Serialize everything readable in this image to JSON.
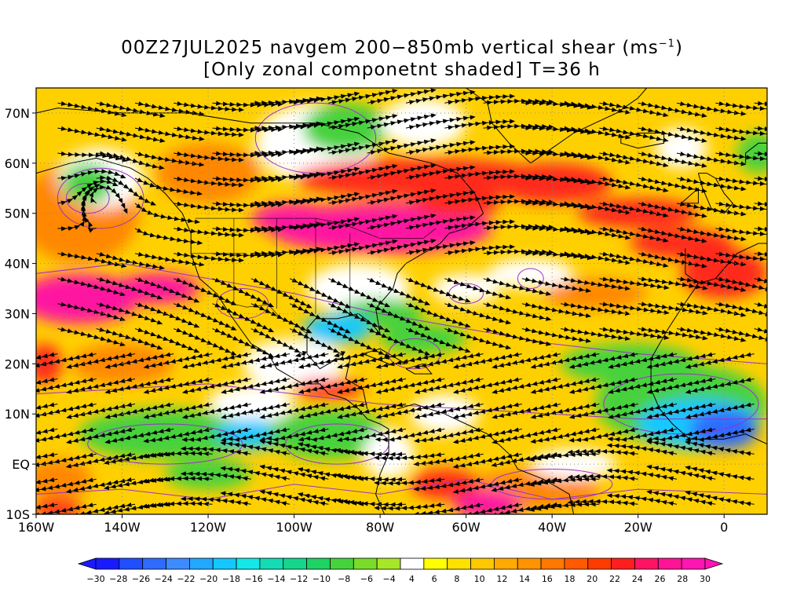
{
  "title": {
    "line1_prefix": "00Z27JUL2025 navgem 200−850mb vertical shear (ms",
    "line1_sup": "−1",
    "line1_suffix": ")",
    "line2": "[Only zonal componetnt shaded] T=36 h"
  },
  "axes": {
    "lat_labels": [
      "70N",
      "60N",
      "50N",
      "40N",
      "30N",
      "20N",
      "10N",
      "EQ",
      "10S"
    ],
    "lon_labels": [
      "160W",
      "140W",
      "120W",
      "100W",
      "80W",
      "60W",
      "40W",
      "20W",
      "0"
    ]
  },
  "colorbar": {
    "labels": [
      "−30",
      "−28",
      "−26",
      "−24",
      "−22",
      "−20",
      "−18",
      "−16",
      "−14",
      "−12",
      "−10",
      "−8",
      "−6",
      "−4",
      "4",
      "6",
      "8",
      "10",
      "12",
      "14",
      "16",
      "18",
      "20",
      "22",
      "24",
      "26",
      "28",
      "30"
    ],
    "colors": [
      "#1a1aff",
      "#1f4fff",
      "#2e6cff",
      "#3d8cff",
      "#22a8ff",
      "#14c8ff",
      "#14e8e8",
      "#14dcb4",
      "#14d78c",
      "#1ed264",
      "#46d23c",
      "#78dc28",
      "#a8e628",
      "#ffffff",
      "#ffff00",
      "#ffe100",
      "#ffc800",
      "#ffaa00",
      "#ff9400",
      "#ff7800",
      "#ff5a00",
      "#ff3c00",
      "#ff1e1e",
      "#ff1464",
      "#ff1496",
      "#ff14b4"
    ]
  },
  "map": {
    "lon_range": [
      -160,
      10
    ],
    "lat_range": [
      -10,
      75
    ],
    "shading_colors": {
      "background": "#ffd000",
      "orange": "#ff8800",
      "red": "#ff2a1e",
      "magenta": "#ff14a0",
      "white": "#ffffff",
      "green": "#46d23c",
      "lightgreen": "#a8e628",
      "cyan": "#14c8ff",
      "blue": "#2e6cff"
    },
    "streamline_color": "#000000",
    "contour_color": "#9b30c8",
    "coast_color": "#000000"
  }
}
